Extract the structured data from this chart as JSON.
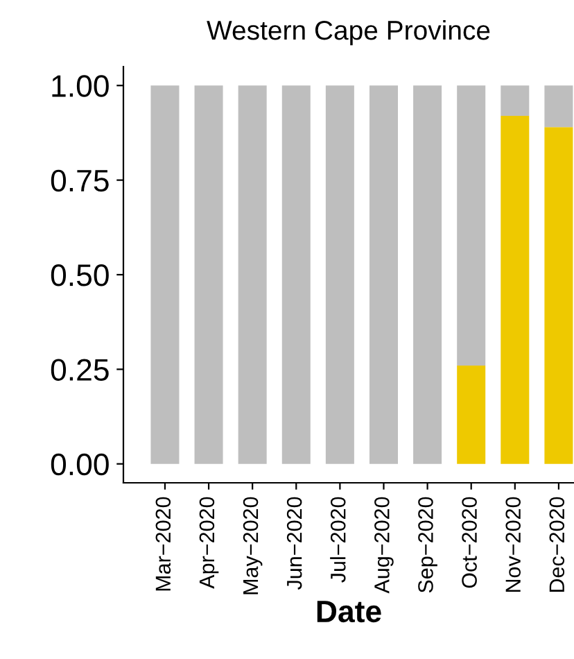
{
  "chart_data": {
    "type": "bar",
    "title": "Western Cape Province",
    "xlabel": "Date",
    "stacked": true,
    "categories": [
      "Mar−2020",
      "Apr−2020",
      "May−2020",
      "Jun−2020",
      "Jul−2020",
      "Aug−2020",
      "Sep−2020",
      "Oct−2020",
      "Nov−2020",
      "Dec−2020"
    ],
    "series": [
      {
        "color": "#eec900",
        "values": [
          0,
          0,
          0,
          0,
          0,
          0,
          0,
          0.26,
          0.92,
          0.89
        ]
      },
      {
        "color": "#bebebe",
        "values": [
          1,
          1,
          1,
          1,
          1,
          1,
          1,
          0.74,
          0.08,
          0.11
        ]
      }
    ],
    "ylim": [
      -0.05,
      1.05
    ],
    "yticks": [
      {
        "value": 0,
        "label": "0.00"
      },
      {
        "value": 0.25,
        "label": "0.25"
      },
      {
        "value": 0.5,
        "label": "0.50"
      },
      {
        "value": 0.75,
        "label": "0.75"
      },
      {
        "value": 1,
        "label": "1.00"
      }
    ],
    "grid": false,
    "legend": false
  }
}
